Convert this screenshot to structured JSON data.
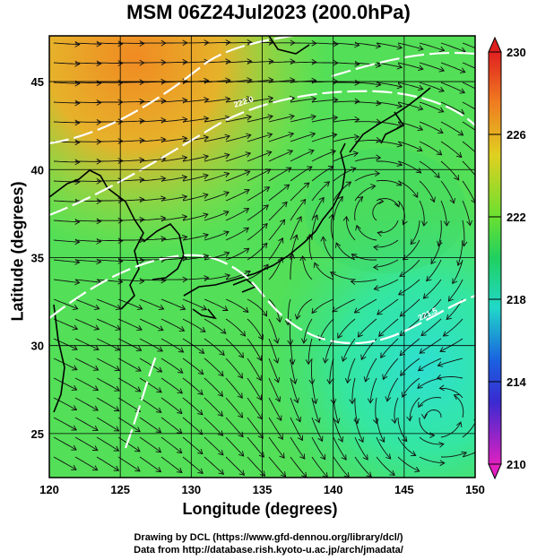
{
  "title": "MSM 06Z24Jul2023 (200.0hPa)",
  "x_axis": {
    "label": "Longitude (degrees)",
    "ticks": [
      "120",
      "125",
      "130",
      "135",
      "140",
      "145",
      "150"
    ],
    "range": [
      120,
      150
    ]
  },
  "y_axis": {
    "label": "Latitude  (degrees)",
    "ticks": [
      "25",
      "30",
      "35",
      "40",
      "45"
    ],
    "range": [
      22.5,
      47.6
    ]
  },
  "colorbar": {
    "ticks": [
      "230",
      "226",
      "222",
      "218",
      "214",
      "210"
    ],
    "range": [
      210,
      230
    ]
  },
  "contour_labels": [
    "222.0",
    "221.5"
  ],
  "credits": {
    "line1": "Drawing by DCL (https://www.gfd-dennou.org/library/dcl/)",
    "line2": "Data from http://database.rish.kyoto-u.ac.jp/arch/jmadata/"
  },
  "colors": {
    "warm": "#f39a2a",
    "mid": "#63e34a",
    "cool": "#30e6b6",
    "contour": "#ffffff",
    "streamline": "#111111"
  }
}
